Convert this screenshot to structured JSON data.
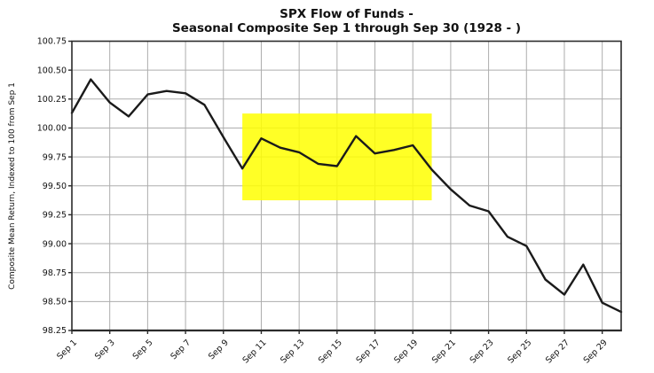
{
  "title": {
    "line1": "SPX Flow of Funds -",
    "line2": "Seasonal Composite Sep 1 through Sep 30 (1928 - )"
  },
  "chart_data": {
    "type": "line",
    "title": "SPX Flow of Funds - Seasonal Composite Sep 1 through Sep 30 (1928 - )",
    "xlabel": "",
    "ylabel": "Composite Mean Return, Indexed to 100 from Sep 1",
    "x": [
      1,
      2,
      3,
      4,
      5,
      6,
      7,
      8,
      9,
      10,
      11,
      12,
      13,
      14,
      15,
      16,
      17,
      18,
      19,
      20,
      21,
      22,
      23,
      24,
      25,
      26,
      27,
      28,
      29,
      30
    ],
    "values": [
      100.13,
      100.42,
      100.22,
      100.1,
      100.29,
      100.32,
      100.3,
      100.2,
      99.92,
      99.65,
      99.91,
      99.83,
      99.79,
      99.69,
      99.67,
      99.93,
      99.78,
      99.81,
      99.85,
      99.64,
      99.47,
      99.33,
      99.28,
      99.06,
      98.98,
      98.69,
      98.56,
      98.82,
      98.49,
      98.41
    ],
    "ylim": [
      98.25,
      100.75
    ],
    "ytick_step": 0.25,
    "y_tick_labels": [
      "98.25",
      "98.50",
      "98.75",
      "99.00",
      "99.25",
      "99.50",
      "99.75",
      "100.00",
      "100.25",
      "100.50",
      "100.75"
    ],
    "x_ticks": [
      1,
      3,
      5,
      7,
      9,
      11,
      13,
      15,
      17,
      19,
      21,
      23,
      25,
      27,
      29
    ],
    "x_tick_labels": [
      "Sep 1",
      "Sep 3",
      "Sep 5",
      "Sep 7",
      "Sep 9",
      "Sep 11",
      "Sep 13",
      "Sep 15",
      "Sep 17",
      "Sep 19",
      "Sep 21",
      "Sep 23",
      "Sep 25",
      "Sep 27",
      "Sep 29"
    ],
    "grid": true,
    "legend": "none",
    "line_color": "#1a1a1a",
    "grid_color": "#adadad",
    "axis_color": "#2b2b2b",
    "highlight_region": {
      "x_start": 10,
      "x_end": 20,
      "y_bottom": 99.375,
      "y_top": 100.125,
      "color": "#ffff00",
      "opacity": 0.85
    }
  }
}
